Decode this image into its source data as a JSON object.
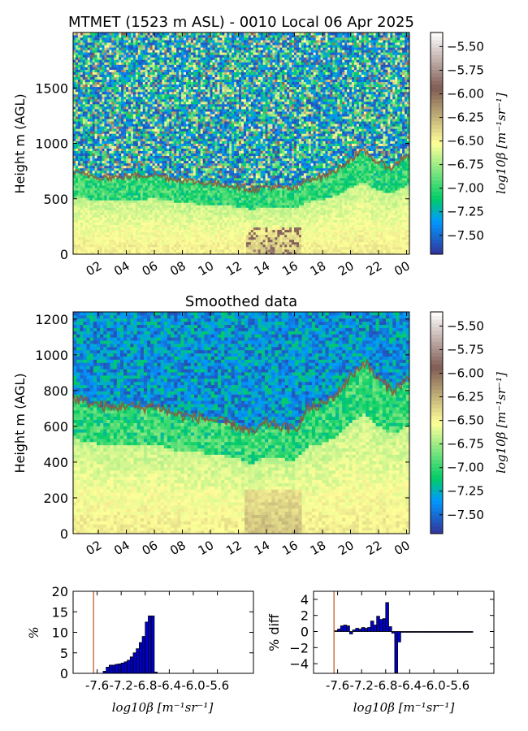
{
  "chart_data": [
    {
      "type": "heatmap",
      "title": "MTMET (1523 m ASL) - 0010 Local 06 Apr 2025",
      "xlabel": "",
      "ylabel": "Height m (AGL)",
      "x_ticks": [
        "02",
        "04",
        "06",
        "08",
        "10",
        "12",
        "14",
        "16",
        "18",
        "20",
        "22",
        "00"
      ],
      "x_range_hours": [
        0.2,
        24.2
      ],
      "ylim": [
        0,
        2000
      ],
      "y_ticks": [
        0,
        500,
        1000,
        1500
      ],
      "colorbar": {
        "label": "log10β [m⁻¹sr⁻¹]",
        "ticks": [
          -5.5,
          -5.75,
          -6.0,
          -6.25,
          -6.5,
          -6.75,
          -7.0,
          -7.25,
          -7.5
        ],
        "tick_labels": [
          "−5.50",
          "−5.75",
          "−6.00",
          "−6.25",
          "−6.50",
          "−6.75",
          "−7.00",
          "−7.25",
          "−7.50"
        ],
        "range": [
          -7.7,
          -5.35
        ],
        "colormap": "terrain"
      },
      "overlay_line": {
        "color": "#8b5a3c",
        "x_hours": [
          0.2,
          1,
          2,
          3,
          4,
          5,
          6,
          7,
          8,
          9,
          10,
          11,
          12,
          13,
          14,
          15,
          16,
          17,
          18,
          19,
          20,
          21,
          22,
          23,
          24,
          24.2
        ],
        "heights_m": [
          740,
          720,
          700,
          690,
          700,
          710,
          720,
          690,
          670,
          650,
          640,
          630,
          610,
          580,
          610,
          600,
          590,
          680,
          700,
          760,
          860,
          930,
          820,
          780,
          900,
          880
        ]
      }
    },
    {
      "type": "heatmap",
      "title": "Smoothed data",
      "xlabel": "",
      "ylabel": "Height m (AGL)",
      "x_ticks": [
        "02",
        "04",
        "06",
        "08",
        "10",
        "12",
        "14",
        "16",
        "18",
        "20",
        "22",
        "00"
      ],
      "x_range_hours": [
        0.2,
        24.2
      ],
      "ylim": [
        0,
        1240
      ],
      "y_ticks": [
        0,
        200,
        400,
        600,
        800,
        1000,
        1200
      ],
      "colorbar": {
        "label": "log10β [m⁻¹sr⁻¹]",
        "ticks": [
          -5.5,
          -5.75,
          -6.0,
          -6.25,
          -6.5,
          -6.75,
          -7.0,
          -7.25,
          -7.5
        ],
        "tick_labels": [
          "−5.50",
          "−5.75",
          "−6.00",
          "−6.25",
          "−6.50",
          "−6.75",
          "−7.00",
          "−7.25",
          "−7.50"
        ],
        "range": [
          -7.7,
          -5.35
        ],
        "colormap": "terrain"
      },
      "overlay_line": {
        "color": "#8b5a3c",
        "x_hours": [
          0.2,
          1,
          2,
          3,
          4,
          5,
          6,
          7,
          8,
          9,
          10,
          11,
          12,
          13,
          14,
          15,
          16,
          17,
          18,
          19,
          20,
          21,
          22,
          23,
          24,
          24.2
        ],
        "heights_m": [
          760,
          740,
          720,
          700,
          720,
          700,
          720,
          680,
          660,
          650,
          640,
          620,
          600,
          560,
          620,
          600,
          580,
          700,
          720,
          780,
          880,
          960,
          860,
          800,
          860,
          840
        ]
      }
    },
    {
      "type": "bar",
      "title": "",
      "xlabel": "log10β [m⁻¹sr⁻¹]",
      "ylabel": "%",
      "xlim": [
        -8.0,
        -5.0
      ],
      "ylim": [
        0,
        20
      ],
      "y_ticks": [
        0,
        5,
        10,
        15,
        20
      ],
      "x_ticks": [
        -7.6,
        -7.2,
        -6.8,
        -6.4,
        -6.0,
        -5.6
      ],
      "x_tick_labels": [
        "-7.6",
        "-7.2",
        "-6.8",
        "-6.4",
        "-6.0",
        "-5.6"
      ],
      "bar_width": 0.05,
      "bar_color": "#0000cc",
      "x": [
        -7.5,
        -7.45,
        -7.4,
        -7.35,
        -7.3,
        -7.25,
        -7.2,
        -7.15,
        -7.1,
        -7.05,
        -7.0,
        -6.95,
        -6.9,
        -6.85,
        -6.8,
        -6.75,
        -6.7,
        -6.65
      ],
      "values": [
        0.5,
        1.5,
        2,
        2,
        2.2,
        2.3,
        2.5,
        2.8,
        3.2,
        4,
        5,
        6,
        7.5,
        9,
        12.5,
        14,
        14,
        0.3
      ],
      "reference_line": {
        "x": -7.66,
        "color": "#c0622a"
      }
    },
    {
      "type": "bar",
      "title": "",
      "xlabel": "log10β [m⁻¹sr⁻¹]",
      "ylabel": "% diff",
      "xlim": [
        -8.0,
        -5.0
      ],
      "ylim": [
        -5.2,
        5.0
      ],
      "y_ticks": [
        -4,
        -2,
        0,
        2,
        4
      ],
      "x_ticks": [
        -7.6,
        -7.2,
        -6.8,
        -6.4,
        -6.0,
        -5.6
      ],
      "x_tick_labels": [
        "-7.6",
        "-7.2",
        "-6.8",
        "-6.4",
        "-6.0",
        "-5.6"
      ],
      "bar_width": 0.05,
      "bar_color": "#0000cc",
      "x": [
        -7.65,
        -7.6,
        -7.55,
        -7.5,
        -7.45,
        -7.4,
        -7.35,
        -7.3,
        -7.25,
        -7.2,
        -7.15,
        -7.1,
        -7.05,
        -7.0,
        -6.95,
        -6.9,
        -6.85,
        -6.8,
        -6.75,
        -6.7,
        -6.65,
        -6.6,
        -6.55,
        -6.5,
        -6.45,
        -6.4,
        -6.35,
        -6.3,
        -6.25,
        -6.2,
        -6.15,
        -6.1,
        -6.05,
        -6.0,
        -5.95,
        -5.9,
        -5.85,
        -5.8,
        -5.75,
        -5.7,
        -5.65,
        -5.6,
        -5.55,
        -5.5,
        -5.45,
        -5.4
      ],
      "values": [
        0.1,
        0.3,
        0.7,
        0.8,
        0.7,
        -0.3,
        0.2,
        0.4,
        0.3,
        0.5,
        0.4,
        0.5,
        1.3,
        0.8,
        1.9,
        1.5,
        1.6,
        3.6,
        0.6,
        -0.2,
        -5.1,
        -1.3,
        -0.1,
        -0.1,
        -0.1,
        -0.1,
        -0.1,
        -0.1,
        -0.1,
        -0.1,
        -0.1,
        -0.1,
        -0.1,
        -0.1,
        -0.1,
        -0.1,
        -0.1,
        -0.1,
        -0.1,
        -0.1,
        -0.1,
        -0.1,
        -0.1,
        -0.1,
        -0.1,
        -0.1
      ],
      "reference_line": {
        "x": -7.66,
        "color": "#c0622a"
      }
    }
  ]
}
